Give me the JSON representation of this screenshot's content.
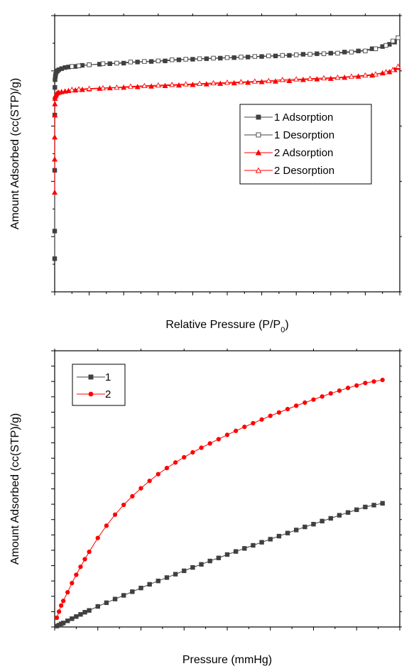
{
  "chart_data": [
    {
      "type": "line",
      "xlabel": "Relative Pressure (P/P",
      "xlabel_sub": "0",
      "xlabel_end": ")",
      "ylabel": "Amount Adsorbed (cc(STP)/g)",
      "xlim": [
        0,
        1.0
      ],
      "ylim": [
        0,
        250
      ],
      "xticks": [
        "0.0",
        "0.1",
        "0.2",
        "0.3",
        "0.4",
        "0.5",
        "0.6",
        "0.7",
        "0.8",
        "0.9",
        "1.0"
      ],
      "yticks": [
        "0",
        "50",
        "100",
        "150",
        "200",
        "250"
      ],
      "grid": false,
      "legend": "center-right",
      "series": [
        {
          "name": "1 Adsorption",
          "color": "#404040",
          "marker": "filled-square",
          "x": [
            1e-05,
            5e-05,
            0.0001,
            0.0003,
            0.0006,
            0.001,
            0.002,
            0.003,
            0.005,
            0.008,
            0.012,
            0.02,
            0.03,
            0.04,
            0.06,
            0.08,
            0.1,
            0.13,
            0.16,
            0.2,
            0.24,
            0.28,
            0.32,
            0.36,
            0.4,
            0.44,
            0.48,
            0.52,
            0.56,
            0.6,
            0.64,
            0.68,
            0.72,
            0.76,
            0.8,
            0.84,
            0.88,
            0.92,
            0.95,
            0.97,
            0.985
          ],
          "y": [
            30,
            55,
            110,
            160,
            185,
            192,
            195,
            197,
            199,
            200,
            201,
            202,
            203,
            203.5,
            204,
            205,
            205.5,
            206,
            206.5,
            207,
            208,
            208.5,
            209,
            210,
            210.5,
            211,
            211.5,
            212,
            212.5,
            213,
            213.5,
            214,
            215,
            215.5,
            216,
            217,
            218,
            220,
            222,
            224,
            226
          ]
        },
        {
          "name": "1 Desorption",
          "color": "#404040",
          "marker": "open-square",
          "x": [
            0.995,
            0.98,
            0.96,
            0.93,
            0.9,
            0.86,
            0.82,
            0.78,
            0.74,
            0.7,
            0.66,
            0.62,
            0.58,
            0.54,
            0.5,
            0.46,
            0.42,
            0.38,
            0.34,
            0.3,
            0.26,
            0.22,
            0.18,
            0.14,
            0.1,
            0.07,
            0.05
          ],
          "y": [
            230,
            227,
            223,
            220,
            218,
            217,
            216,
            215.5,
            215,
            214.5,
            214,
            213.5,
            213,
            212.5,
            212,
            211.5,
            211,
            210.5,
            210,
            209,
            208.5,
            208,
            207,
            206.5,
            205.5,
            204.5,
            204
          ]
        },
        {
          "name": "2 Adsorption",
          "color": "#ff0000",
          "marker": "filled-triangle",
          "x": [
            1e-05,
            5e-05,
            0.0001,
            0.0003,
            0.0006,
            0.001,
            0.002,
            0.003,
            0.005,
            0.008,
            0.012,
            0.02,
            0.03,
            0.04,
            0.06,
            0.08,
            0.1,
            0.13,
            0.16,
            0.2,
            0.24,
            0.28,
            0.32,
            0.36,
            0.4,
            0.44,
            0.48,
            0.52,
            0.56,
            0.6,
            0.64,
            0.68,
            0.72,
            0.76,
            0.8,
            0.84,
            0.88,
            0.92,
            0.95,
            0.97,
            0.985,
            0.995
          ],
          "y": [
            90,
            120,
            140,
            160,
            170,
            175,
            177,
            178,
            179,
            180,
            180.5,
            181,
            181.5,
            182,
            182.5,
            183,
            183.5,
            184,
            184.5,
            185,
            185.5,
            186,
            186.5,
            187,
            187.5,
            188,
            188.5,
            189,
            189.5,
            190,
            190.5,
            191,
            192,
            192.5,
            193,
            194,
            195,
            196,
            198,
            199,
            201,
            203
          ]
        },
        {
          "name": "2 Desorption",
          "color": "#ff0000",
          "marker": "open-triangle",
          "x": [
            0.995,
            0.98,
            0.96,
            0.93,
            0.9,
            0.86,
            0.82,
            0.78,
            0.74,
            0.7,
            0.66,
            0.62,
            0.58,
            0.54,
            0.5,
            0.46,
            0.42,
            0.38,
            0.34,
            0.3,
            0.26,
            0.22,
            0.18,
            0.14,
            0.1,
            0.07,
            0.05
          ],
          "y": [
            204,
            201,
            199,
            197,
            196,
            195,
            194,
            193.5,
            193,
            192.5,
            192,
            191,
            190.5,
            190,
            189.5,
            189,
            188.5,
            188,
            187.5,
            187,
            186.5,
            186,
            185,
            184.5,
            184,
            183.5,
            183
          ]
        }
      ]
    },
    {
      "type": "line",
      "xlabel": "Pressure (mmHg)",
      "ylabel": "Amount Adsorbed (cc(STP)/g)",
      "xlim": [
        0,
        800
      ],
      "ylim": [
        0,
        90
      ],
      "xticks": [
        "0",
        "100",
        "200",
        "300",
        "400",
        "500",
        "600",
        "700",
        "800"
      ],
      "yticks": [
        "0",
        "5",
        "10",
        "15",
        "20",
        "25",
        "30",
        "35",
        "40",
        "45",
        "50",
        "55",
        "60",
        "65",
        "70",
        "75",
        "80",
        "85",
        "90"
      ],
      "grid": false,
      "legend": "top-left",
      "series": [
        {
          "name": "1",
          "color": "#404040",
          "marker": "filled-square",
          "x": [
            5,
            10,
            15,
            20,
            30,
            40,
            50,
            60,
            70,
            80,
            100,
            120,
            140,
            160,
            180,
            200,
            220,
            240,
            260,
            280,
            300,
            320,
            340,
            360,
            380,
            400,
            420,
            440,
            460,
            480,
            500,
            520,
            540,
            560,
            580,
            600,
            620,
            640,
            660,
            680,
            700,
            720,
            740,
            760
          ],
          "y": [
            0.3,
            0.6,
            1.0,
            1.3,
            2.0,
            2.7,
            3.4,
            4.1,
            4.8,
            5.4,
            6.7,
            7.9,
            9.1,
            10.3,
            11.5,
            12.7,
            13.9,
            15.0,
            16.1,
            17.2,
            18.3,
            19.4,
            20.4,
            21.5,
            22.5,
            23.6,
            24.6,
            25.6,
            26.6,
            27.6,
            28.6,
            29.6,
            30.6,
            31.6,
            32.6,
            33.5,
            34.5,
            35.4,
            36.4,
            37.3,
            38.2,
            39.1,
            39.7,
            40.3
          ]
        },
        {
          "name": "2",
          "color": "#ff0000",
          "marker": "filled-circle",
          "x": [
            5,
            10,
            15,
            20,
            30,
            40,
            50,
            60,
            70,
            80,
            100,
            120,
            140,
            160,
            180,
            200,
            220,
            240,
            260,
            280,
            300,
            320,
            340,
            360,
            380,
            400,
            420,
            440,
            460,
            480,
            500,
            520,
            540,
            560,
            580,
            600,
            620,
            640,
            660,
            680,
            700,
            720,
            740,
            760
          ],
          "y": [
            3.0,
            5.0,
            7.0,
            8.5,
            11.3,
            14.3,
            17.0,
            19.6,
            22.1,
            24.5,
            29.0,
            33.0,
            36.6,
            39.8,
            42.6,
            45.2,
            47.6,
            49.8,
            51.8,
            53.6,
            55.3,
            56.9,
            58.4,
            59.8,
            61.2,
            62.6,
            63.9,
            65.2,
            66.4,
            67.6,
            68.8,
            69.9,
            71.0,
            72.1,
            73.1,
            74.1,
            75.1,
            76.1,
            77.0,
            77.9,
            78.7,
            79.5,
            80.0,
            80.5
          ]
        }
      ]
    }
  ]
}
